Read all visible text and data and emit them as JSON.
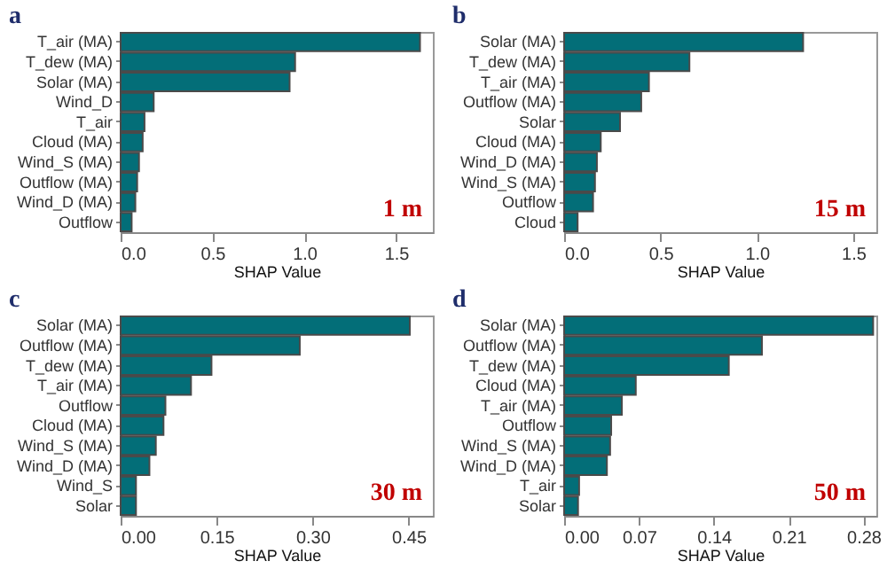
{
  "chart_data": [
    {
      "type": "bar",
      "orientation": "horizontal",
      "title": "a",
      "xlabel": "SHAP Value",
      "color": "#036e78",
      "categories": [
        "T_air (MA)",
        "T_dew (MA)",
        "Solar (MA)",
        "Wind_D",
        "T_air",
        "Cloud (MA)",
        "Wind_S (MA)",
        "Outflow (MA)",
        "Wind_D (MA)",
        "Outflow"
      ],
      "values": [
        1.63,
        0.95,
        0.92,
        0.18,
        0.13,
        0.12,
        0.1,
        0.09,
        0.08,
        0.06
      ],
      "xlim": [
        0,
        1.7
      ],
      "xticks": [
        {
          "value": 0,
          "label": "0.0"
        },
        0.5,
        {
          "value": 1,
          "label": "1.0"
        },
        1.5
      ],
      "annotations": [
        "1 m"
      ]
    },
    {
      "type": "bar",
      "orientation": "horizontal",
      "title": "b",
      "xlabel": "SHAP Value",
      "color": "#036e78",
      "categories": [
        "Solar (MA)",
        "T_dew (MA)",
        "T_air (MA)",
        "Outflow (MA)",
        "Solar",
        "Cloud (MA)",
        "Wind_D (MA)",
        "Wind_S (MA)",
        "Outflow",
        "Cloud"
      ],
      "values": [
        1.24,
        0.65,
        0.44,
        0.4,
        0.29,
        0.19,
        0.17,
        0.16,
        0.15,
        0.07
      ],
      "xlim": [
        0,
        1.62
      ],
      "xticks": [
        {
          "value": 0,
          "label": "0.0"
        },
        0.5,
        {
          "value": 1,
          "label": "1.0"
        },
        1.5
      ],
      "annotations": [
        "15 m"
      ]
    },
    {
      "type": "bar",
      "orientation": "horizontal",
      "title": "c",
      "xlabel": "SHAP Value",
      "color": "#036e78",
      "categories": [
        "Solar (MA)",
        "Outflow (MA)",
        "T_dew (MA)",
        "T_air (MA)",
        "Outflow",
        "Cloud (MA)",
        "Wind_S (MA)",
        "Wind_D (MA)",
        "Wind_S",
        "Solar"
      ],
      "values": [
        0.452,
        0.28,
        0.142,
        0.11,
        0.07,
        0.067,
        0.055,
        0.045,
        0.024,
        0.024
      ],
      "xlim": [
        0,
        0.488
      ],
      "xticks": [
        {
          "value": 0,
          "label": "0.00"
        },
        {
          "value": 0.15,
          "label": "0.15"
        },
        {
          "value": 0.3,
          "label": "0.30"
        },
        {
          "value": 0.45,
          "label": "0.45"
        }
      ],
      "annotations": [
        "30 m"
      ]
    },
    {
      "type": "bar",
      "orientation": "horizontal",
      "title": "d",
      "xlabel": "SHAP Value",
      "color": "#036e78",
      "categories": [
        "Solar (MA)",
        "Outflow (MA)",
        "T_dew (MA)",
        "Cloud (MA)",
        "T_air (MA)",
        "Outflow",
        "Wind_S (MA)",
        "Wind_D (MA)",
        "T_air",
        "Solar"
      ],
      "values": [
        0.289,
        0.185,
        0.154,
        0.067,
        0.054,
        0.044,
        0.043,
        0.04,
        0.014,
        0.013
      ],
      "xlim": [
        0,
        0.292
      ],
      "xticks": [
        {
          "value": 0,
          "label": "0.00"
        },
        0.07,
        0.14,
        0.21,
        0.28
      ],
      "annotations": [
        "50 m"
      ]
    }
  ]
}
